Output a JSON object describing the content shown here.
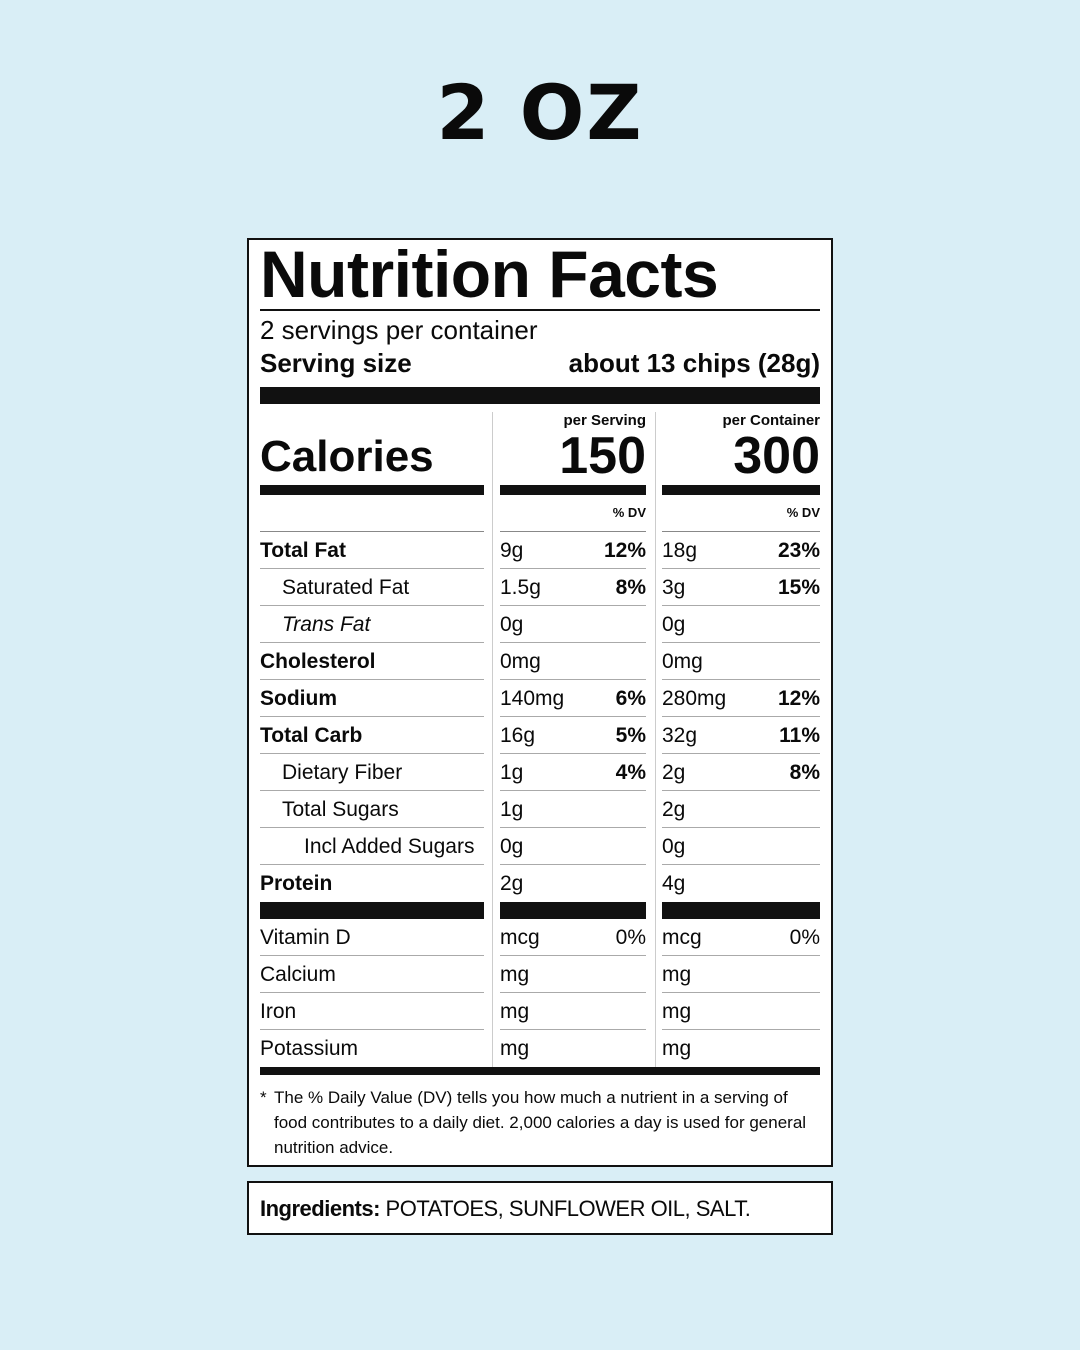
{
  "heading": "2 OZ",
  "label": {
    "title": "Nutrition Facts",
    "servings": "2 servings per container",
    "serving_size_label": "Serving size",
    "serving_size_value": "about 13 chips (28g)",
    "calories_label": "Calories",
    "per_serving_label": "per Serving",
    "per_serving_calories": 150,
    "per_container_label": "per Container",
    "per_container_calories": 300,
    "dv_header": "% DV",
    "nutrients": [
      {
        "name": "Total Fat",
        "serving_amount": "9g",
        "serving_dv": "12%",
        "container_amount": "18g",
        "container_dv": "23%"
      },
      {
        "name": "Saturated Fat",
        "serving_amount": "1.5g",
        "serving_dv": "8%",
        "container_amount": "3g",
        "container_dv": "15%"
      },
      {
        "name": "Trans Fat",
        "serving_amount": "0g",
        "container_amount": "0g"
      },
      {
        "name": "Cholesterol",
        "serving_amount": "0mg",
        "container_amount": "0mg"
      },
      {
        "name": "Sodium",
        "serving_amount": "140mg",
        "serving_dv": "6%",
        "container_amount": "280mg",
        "container_dv": "12%"
      },
      {
        "name": "Total Carb",
        "serving_amount": "16g",
        "serving_dv": "5%",
        "container_amount": "32g",
        "container_dv": "11%"
      },
      {
        "name": "Dietary Fiber",
        "serving_amount": "1g",
        "serving_dv": "4%",
        "container_amount": "2g",
        "container_dv": "8%"
      },
      {
        "name": "Total Sugars",
        "serving_amount": "1g",
        "container_amount": "2g"
      },
      {
        "name": "Incl Added Sugars",
        "serving_amount": "0g",
        "container_amount": "0g"
      },
      {
        "name": "Protein",
        "serving_amount": "2g",
        "container_amount": "4g"
      }
    ],
    "vitamins": [
      {
        "name": "Vitamin D",
        "serving_amount": "mcg",
        "serving_dv": "0%",
        "container_amount": "mcg",
        "container_dv": "0%"
      },
      {
        "name": "Calcium",
        "serving_amount": "mg",
        "container_amount": "mg"
      },
      {
        "name": "Iron",
        "serving_amount": "mg",
        "container_amount": "mg"
      },
      {
        "name": "Potassium",
        "serving_amount": "mg",
        "container_amount": "mg"
      }
    ],
    "footnote_marker": "*",
    "footnote": "The % Daily Value (DV) tells you how much a nutrient in a serving of food contributes to a daily diet. 2,000 calories a day is used for general nutrition advice."
  },
  "ingredients": {
    "label": "Ingredients:",
    "text": "POTATOES, SUNFLOWER OIL, SALT."
  }
}
